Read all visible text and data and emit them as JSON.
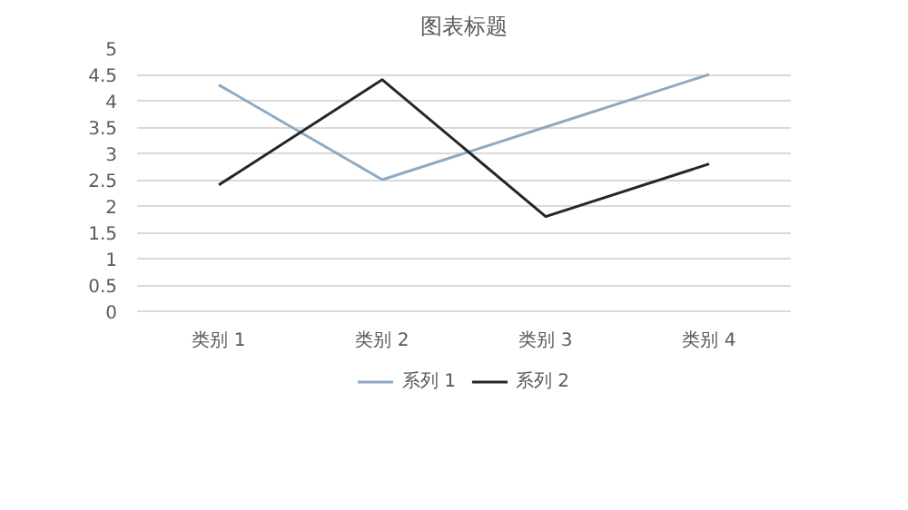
{
  "chart_data": {
    "type": "line",
    "title": "图表标题",
    "categories": [
      "类别 1",
      "类别 2",
      "类别 3",
      "类别 4"
    ],
    "series": [
      {
        "name": "系列 1",
        "color": "#8eaac2",
        "values": [
          4.3,
          2.5,
          3.5,
          4.5
        ]
      },
      {
        "name": "系列 2",
        "color": "#262626",
        "values": [
          2.4,
          4.4,
          1.8,
          2.8
        ]
      }
    ],
    "ylim": [
      0,
      5
    ],
    "yticks": [
      0,
      0.5,
      1,
      1.5,
      2,
      2.5,
      3,
      3.5,
      4,
      4.5,
      5
    ],
    "grid": "y",
    "legend": "bottom",
    "marker": "none",
    "line_style": "solid"
  }
}
